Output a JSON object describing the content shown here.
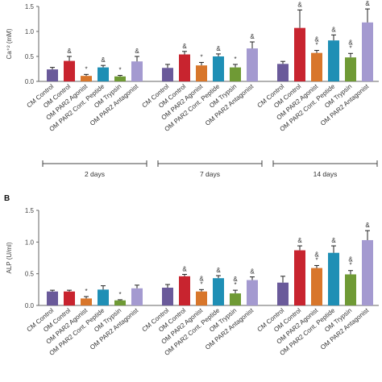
{
  "chart_data": [
    {
      "type": "bar",
      "panel_label": "",
      "ylabel": "Ca⁺² (mM)",
      "ylim": [
        0,
        1.5
      ],
      "yticks": [
        "0.0",
        "0.5",
        "1.0",
        "1.5"
      ],
      "categories": [
        "CM Control",
        "OM Control",
        "OM PAR2 Agonist",
        "OM PAR2 Cont. Peptide",
        "OM Trypsin",
        "OM PAR2 Antagonist"
      ],
      "colors": [
        "#6a5a9a",
        "#c8242f",
        "#d8762b",
        "#1f8fb5",
        "#6f9a35",
        "#a49ad0"
      ],
      "groups": [
        {
          "label": "2 days",
          "values": [
            0.24,
            0.41,
            0.11,
            0.28,
            0.1,
            0.4
          ],
          "errors": [
            0.04,
            0.09,
            0.03,
            0.04,
            0.02,
            0.1
          ],
          "annotations": [
            "",
            "&",
            "*",
            "&",
            "*",
            "&"
          ]
        },
        {
          "label": "7 days",
          "values": [
            0.27,
            0.54,
            0.32,
            0.5,
            0.28,
            0.66
          ],
          "errors": [
            0.07,
            0.06,
            0.06,
            0.05,
            0.06,
            0.13
          ],
          "annotations": [
            "",
            "&",
            "*",
            "&",
            "*",
            "&"
          ]
        },
        {
          "label": "14 days",
          "values": [
            0.35,
            1.07,
            0.57,
            0.82,
            0.48,
            1.18
          ],
          "errors": [
            0.05,
            0.36,
            0.05,
            0.11,
            0.08,
            0.27
          ],
          "annotations": [
            "",
            "&",
            "&\n*",
            "&",
            "&\n*",
            "&"
          ]
        }
      ]
    },
    {
      "type": "bar",
      "panel_label": "B",
      "ylabel": "ALP (U/ml)",
      "ylim": [
        0,
        1.5
      ],
      "yticks": [
        "0.0",
        "0.5",
        "1.0",
        "1.5"
      ],
      "categories": [
        "CM Control",
        "OM Control",
        "OM PAR2 Agonist",
        "OM PAR2 Cont. Peptide",
        "OM Trypsin",
        "OM PAR2 Antagonist"
      ],
      "colors": [
        "#6a5a9a",
        "#c8242f",
        "#d8762b",
        "#1f8fb5",
        "#6f9a35",
        "#a49ad0"
      ],
      "groups": [
        {
          "label": "",
          "values": [
            0.22,
            0.22,
            0.11,
            0.25,
            0.08,
            0.27
          ],
          "errors": [
            0.02,
            0.02,
            0.03,
            0.06,
            0.01,
            0.05
          ],
          "annotations": [
            "",
            "",
            "*",
            "",
            "*",
            ""
          ]
        },
        {
          "label": "",
          "values": [
            0.28,
            0.46,
            0.22,
            0.43,
            0.19,
            0.4
          ],
          "errors": [
            0.05,
            0.03,
            0.03,
            0.04,
            0.05,
            0.05
          ],
          "annotations": [
            "",
            "&",
            "&\n*",
            "&",
            "&\n*",
            "&"
          ]
        },
        {
          "label": "",
          "values": [
            0.36,
            0.87,
            0.59,
            0.83,
            0.49,
            1.03
          ],
          "errors": [
            0.1,
            0.07,
            0.04,
            0.11,
            0.06,
            0.15
          ],
          "annotations": [
            "",
            "&",
            "&\n*",
            "&",
            "&\n*",
            "&"
          ]
        }
      ]
    }
  ]
}
